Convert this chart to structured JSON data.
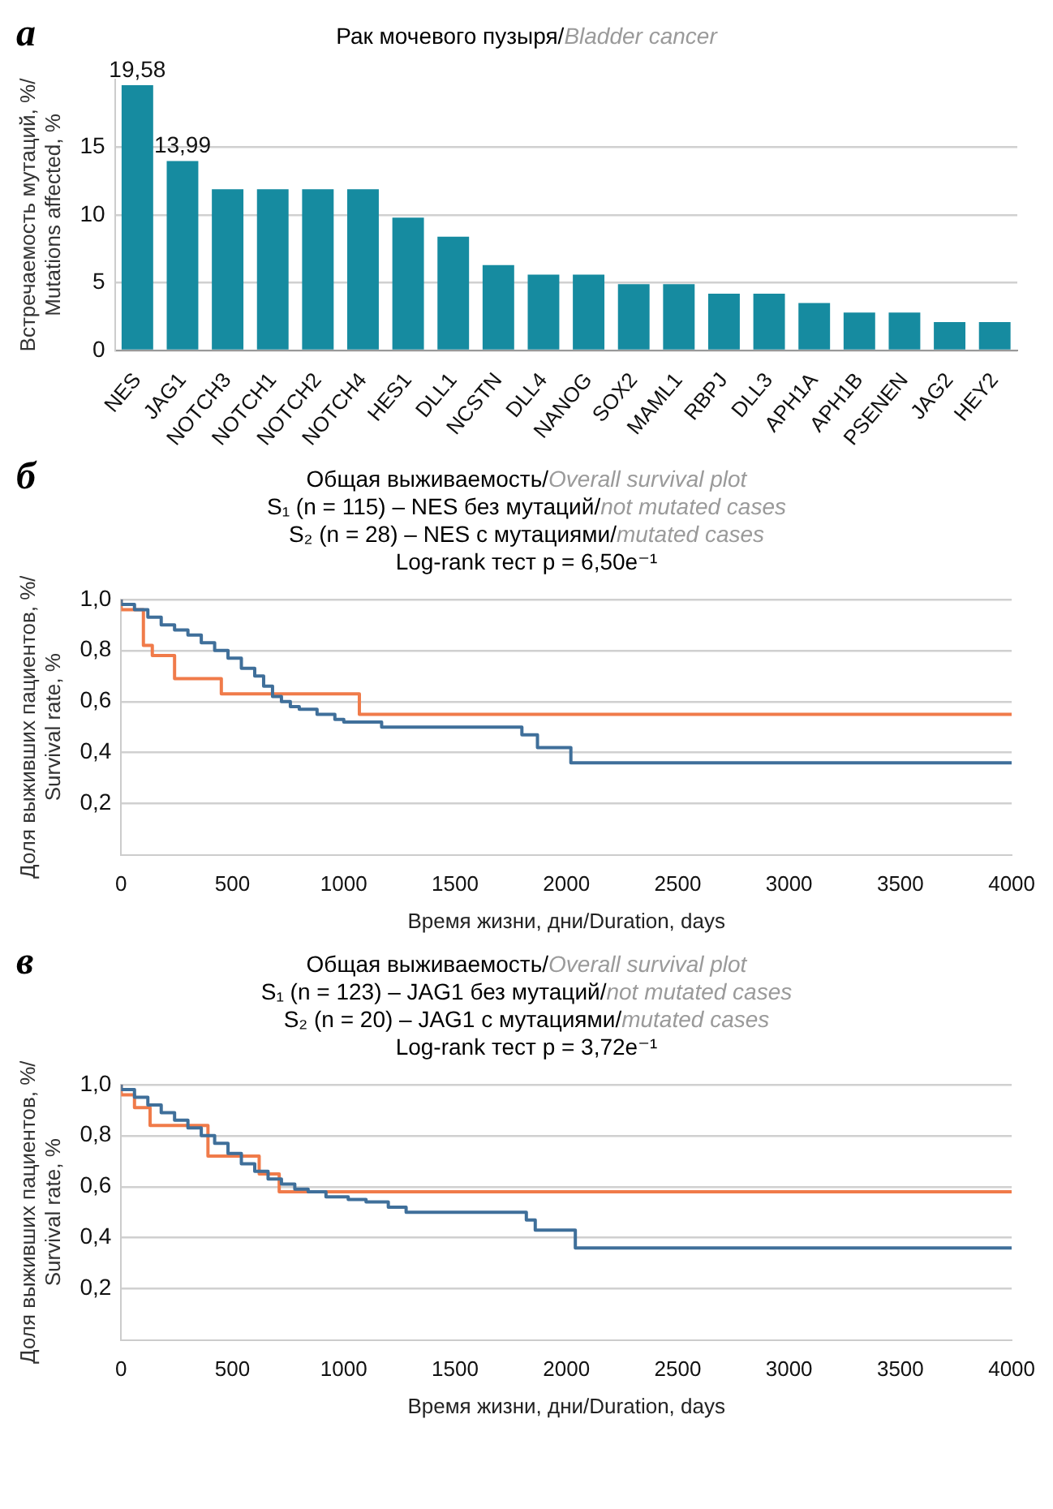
{
  "chart_data": [
    {
      "type": "bar",
      "title": "Рак мочевого пузыря/Bladder cancer",
      "ylabel": "Встречаемость мутаций, %/Mutations affected, %",
      "annotations": [
        "а"
      ],
      "categories": [
        "NES",
        "JAG1",
        "NOTCH3",
        "NOTCH1",
        "NOTCH2",
        "NOTCH4",
        "HES1",
        "DLL1",
        "NCSTN",
        "DLL4",
        "NANOG",
        "SOX2",
        "MAML1",
        "RBPJ",
        "DLL3",
        "APH1A",
        "APH1B",
        "PSENEN",
        "JAG2",
        "HEY2"
      ],
      "values": [
        19.58,
        13.99,
        11.9,
        11.9,
        11.9,
        11.9,
        9.8,
        8.4,
        6.3,
        5.6,
        5.6,
        4.9,
        4.9,
        4.2,
        4.2,
        3.5,
        2.8,
        2.8,
        2.1,
        2.1
      ],
      "value_labels": [
        "19,58",
        "13,99",
        null,
        null,
        null,
        null,
        null,
        null,
        null,
        null,
        null,
        null,
        null,
        null,
        null,
        null,
        null,
        null,
        null,
        null
      ],
      "color": "#168ba0",
      "ylim": [
        0,
        20
      ],
      "yticks": [
        0,
        5,
        10,
        15
      ],
      "grid": "y"
    },
    {
      "type": "step",
      "title": "Общая выживаемость/Overall survival plot",
      "subtitle": "S₁ (n = 115) – NES без мутаций/not mutated cases\nS₂ (n = 28) – NES с мутациями/mutated cases\nLog-rank тест p = 6,50e⁻¹",
      "annotations": [
        "б"
      ],
      "xlabel": "Время жизни, дни/Duration, days",
      "ylabel": "Доля выживших пациентов, %/Survival rate, %",
      "series": [
        {
          "color": "#3f6f9a",
          "x": [
            0,
            60,
            120,
            180,
            240,
            300,
            360,
            420,
            480,
            540,
            600,
            640,
            680,
            720,
            760,
            800,
            880,
            960,
            1000,
            1170,
            1800,
            1870,
            2020,
            3190,
            4000
          ],
          "values": [
            1.0,
            0.98,
            0.96,
            0.93,
            0.9,
            0.88,
            0.86,
            0.83,
            0.8,
            0.77,
            0.73,
            0.7,
            0.66,
            0.62,
            0.6,
            0.58,
            0.57,
            0.55,
            0.53,
            0.52,
            0.5,
            0.47,
            0.42,
            0.36,
            0.36
          ]
        },
        {
          "color": "#f07b4a",
          "x": [
            0,
            100,
            140,
            240,
            450,
            1070,
            1260,
            4000
          ],
          "values": [
            1.0,
            0.96,
            0.82,
            0.78,
            0.69,
            0.63,
            0.55,
            0.55
          ]
        }
      ],
      "xlim": [
        0,
        4000
      ],
      "xticks": [
        0,
        500,
        1000,
        1500,
        2000,
        2500,
        3000,
        3500,
        4000
      ],
      "ylim": [
        0,
        1
      ],
      "yticks": [
        {
          "value": 0.2,
          "label": "0,2"
        },
        {
          "value": 0.4,
          "label": "0,4"
        },
        {
          "value": 0.6,
          "label": "0,6"
        },
        {
          "value": 0.8,
          "label": "0,8"
        },
        {
          "value": 1,
          "label": "1,0"
        }
      ],
      "grid": "y"
    },
    {
      "type": "step",
      "title": "Общая выживаемость/Overall survival plot",
      "subtitle": "S₁ (n = 123) – JAG1 без мутаций/not mutated cases\nS₂ (n = 20) – JAG1 с мутациями/mutated cases\nLog-rank тест p = 3,72e⁻¹",
      "annotations": [
        "в"
      ],
      "xlabel": "Время жизни, дни/Duration, days",
      "ylabel": "Доля выживших пациентов, %/Survival rate, %",
      "series": [
        {
          "color": "#3f6f9a",
          "x": [
            0,
            60,
            120,
            180,
            240,
            300,
            360,
            420,
            480,
            540,
            600,
            660,
            720,
            780,
            840,
            920,
            1020,
            1100,
            1200,
            1280,
            1820,
            1860,
            2040,
            3200,
            4000
          ],
          "values": [
            1.0,
            0.98,
            0.95,
            0.92,
            0.89,
            0.86,
            0.83,
            0.8,
            0.77,
            0.73,
            0.69,
            0.66,
            0.63,
            0.61,
            0.59,
            0.58,
            0.56,
            0.55,
            0.54,
            0.52,
            0.5,
            0.47,
            0.43,
            0.36,
            0.36
          ]
        },
        {
          "color": "#f07b4a",
          "x": [
            0,
            60,
            130,
            390,
            620,
            710,
            1000,
            4000
          ],
          "values": [
            1.0,
            0.96,
            0.91,
            0.84,
            0.72,
            0.65,
            0.58,
            0.58
          ]
        }
      ],
      "xlim": [
        0,
        4000
      ],
      "xticks": [
        0,
        500,
        1000,
        1500,
        2000,
        2500,
        3000,
        3500,
        4000
      ],
      "ylim": [
        0,
        1
      ],
      "yticks": [
        {
          "value": 0.2,
          "label": "0,2"
        },
        {
          "value": 0.4,
          "label": "0,4"
        },
        {
          "value": 0.6,
          "label": "0,6"
        },
        {
          "value": 0.8,
          "label": "0,8"
        },
        {
          "value": 1,
          "label": "1,0"
        }
      ],
      "grid": "y"
    }
  ]
}
